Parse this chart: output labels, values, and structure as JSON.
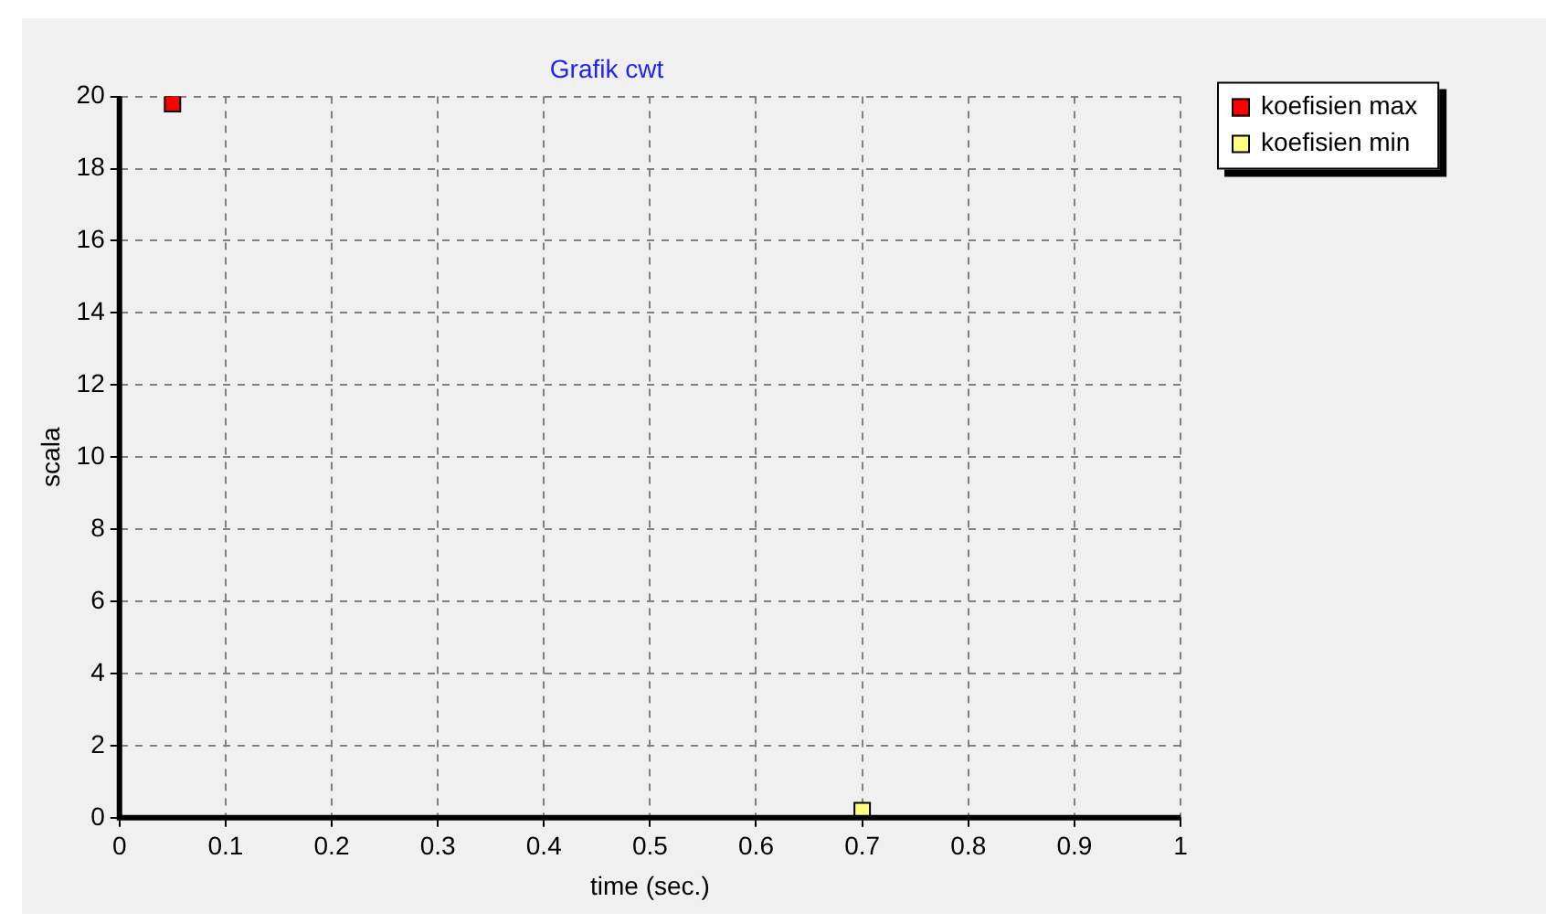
{
  "chart_data": {
    "type": "scatter",
    "title": "Grafik cwt",
    "xlabel": "time (sec.)",
    "ylabel": "scala",
    "series": [
      {
        "name": "koefisien max",
        "color": "#ff0000",
        "x": [
          0.05
        ],
        "values": [
          19.8
        ]
      },
      {
        "name": "koefisien min",
        "color": "#ffff80",
        "x": [
          0.7
        ],
        "values": [
          0.2
        ]
      }
    ],
    "xlim": [
      0,
      1
    ],
    "xticks": [
      0,
      0.1,
      0.2,
      0.3,
      0.4,
      0.5,
      0.6,
      0.7,
      0.8,
      0.9,
      1
    ],
    "ylim": [
      0,
      20
    ],
    "yticks": [
      0,
      2,
      4,
      6,
      8,
      10,
      12,
      14,
      16,
      18,
      20
    ],
    "grid": true,
    "legend": "top right",
    "marker": "square"
  }
}
